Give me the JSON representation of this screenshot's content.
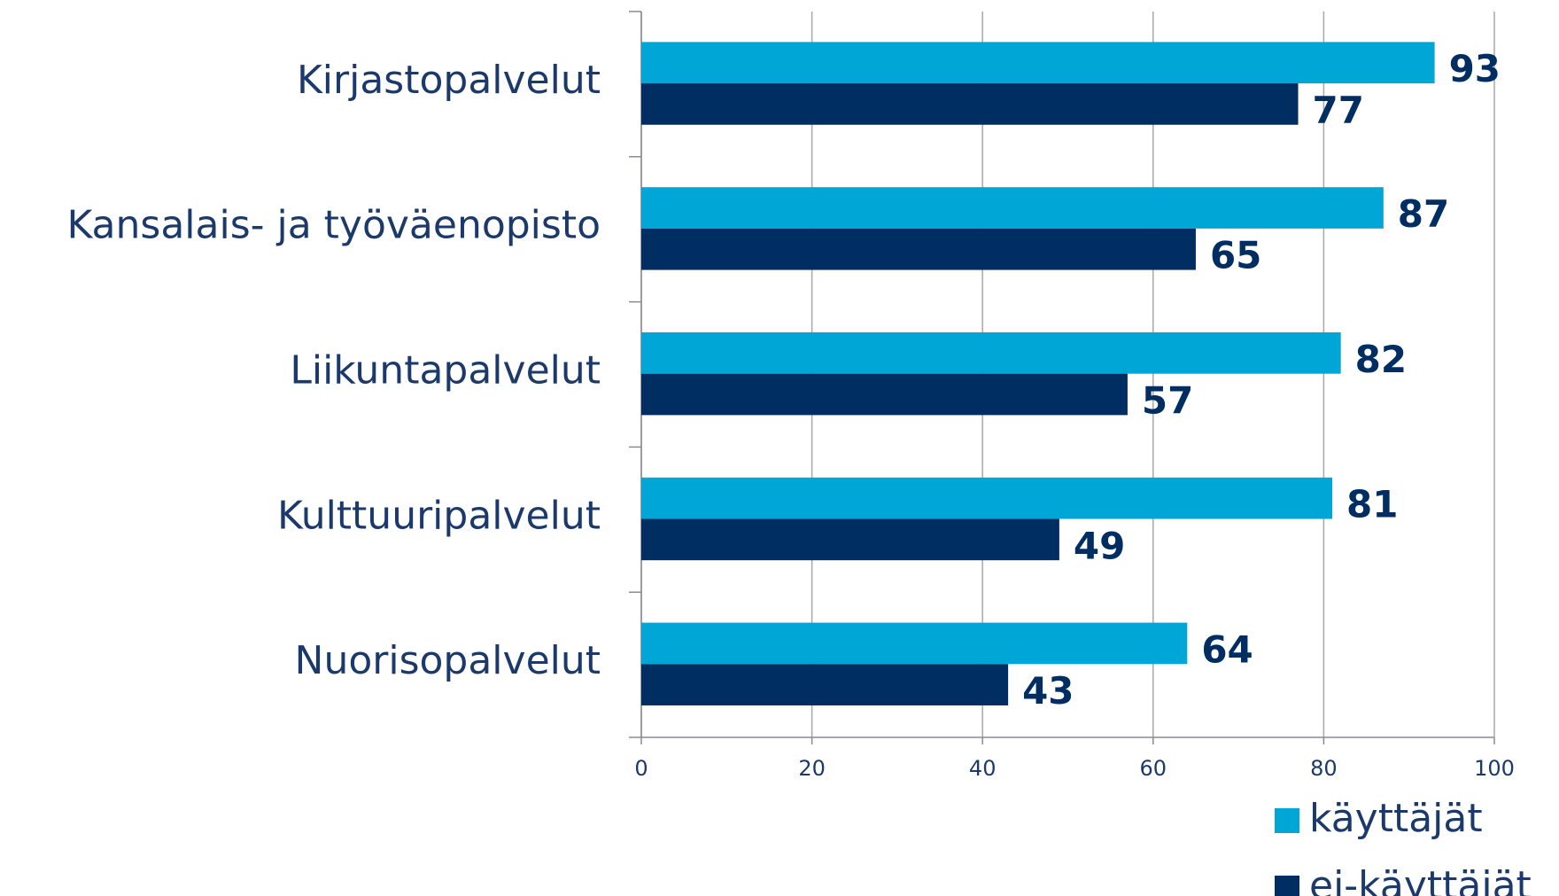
{
  "chart_data": {
    "type": "bar",
    "orientation": "horizontal",
    "categories": [
      "Kirjastopalvelut",
      "Kansalais- ja työväenopisto",
      "Liikuntapalvelut",
      "Kulttuuripalvelut",
      "Nuorisopalvelut"
    ],
    "series": [
      {
        "name": "käyttäjät",
        "color": "#00a6d6",
        "values": [
          93,
          87,
          82,
          81,
          64
        ]
      },
      {
        "name": "ei-käyttäjät",
        "color": "#002d62",
        "values": [
          77,
          65,
          57,
          49,
          43
        ]
      }
    ],
    "xlim": [
      0,
      100
    ],
    "xticks": [
      0,
      20,
      40,
      60,
      80,
      100
    ],
    "grid": true,
    "legend": "bottom-right"
  }
}
